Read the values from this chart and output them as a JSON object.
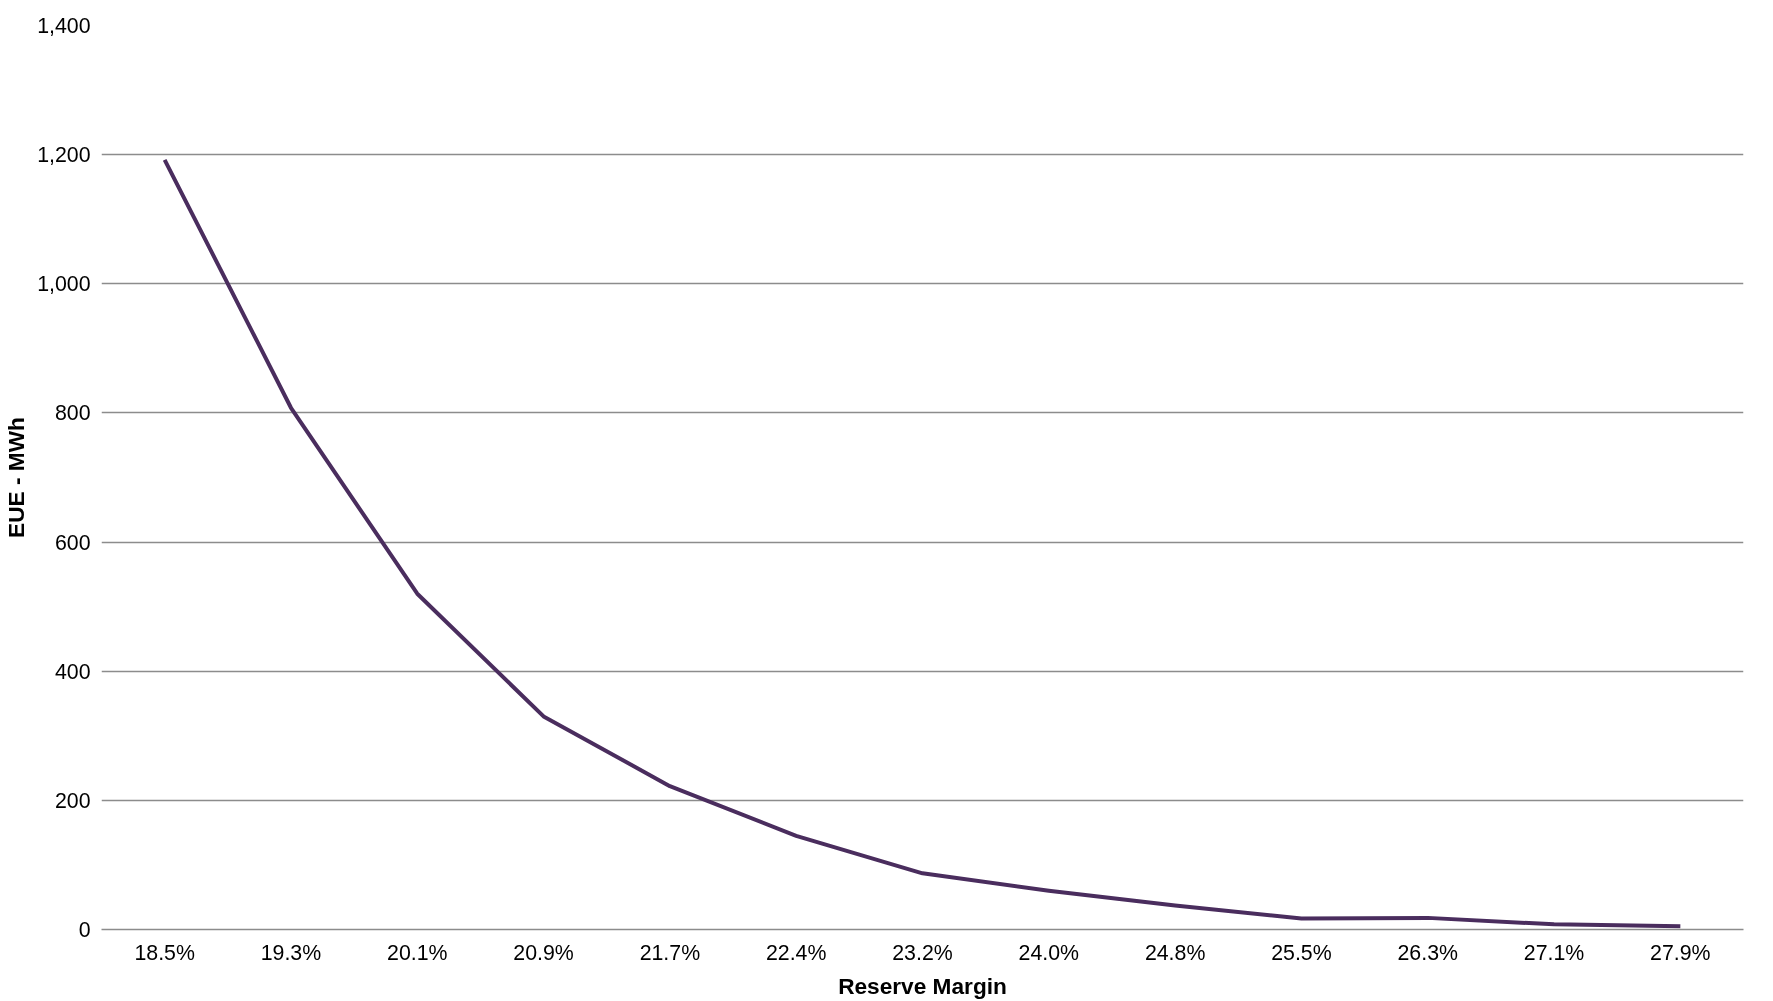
{
  "chart_data": {
    "type": "line",
    "xlabel": "Reserve Margin",
    "ylabel": "EUE - MWh",
    "categories": [
      "18.5%",
      "19.3%",
      "20.1%",
      "20.9%",
      "21.7%",
      "22.4%",
      "23.2%",
      "24.0%",
      "24.8%",
      "25.5%",
      "26.3%",
      "27.1%",
      "27.9%"
    ],
    "series": [
      {
        "color": "#4a2d5e",
        "values": [
          1192,
          808,
          520,
          330,
          222,
          145,
          87,
          60,
          37,
          17,
          18,
          8,
          5
        ]
      }
    ],
    "ylim": [
      0,
      1400
    ],
    "yticks": [
      0,
      {
        "value": 200,
        "label": "200"
      },
      {
        "value": 400,
        "label": "400"
      },
      {
        "value": 600,
        "label": "600"
      },
      {
        "value": 800,
        "label": "800"
      },
      {
        "value": 1000,
        "label": "1,000"
      },
      {
        "value": 1200,
        "label": "1,200"
      },
      {
        "value": 1400,
        "label": "1,400"
      }
    ],
    "grid": "y",
    "marker": "none",
    "line_style": "solid"
  }
}
